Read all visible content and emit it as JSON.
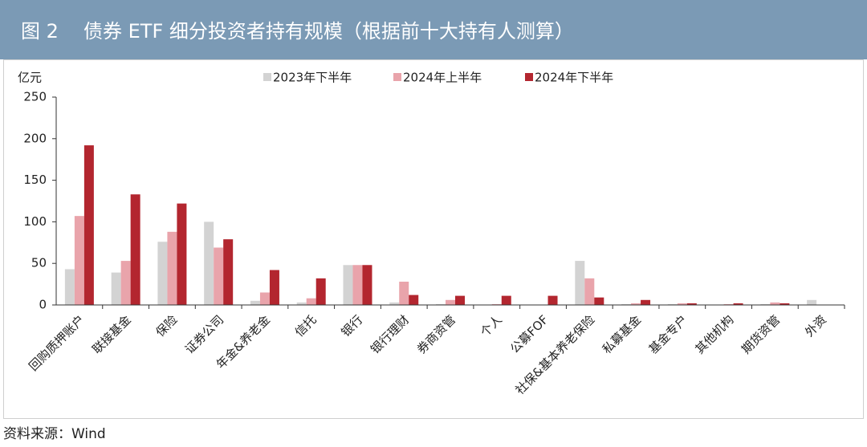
{
  "chart_data": {
    "type": "bar",
    "figure_label": "图 2",
    "title": "债券 ETF 细分投资者持有规模（根据前十大持有人测算）",
    "y_axis_label": "亿元",
    "source": "资料来源：Wind",
    "categories": [
      "回购质押账户",
      "联接基金",
      "保险",
      "证券公司",
      "年金&养老金",
      "信托",
      "银行",
      "银行理财",
      "券商资管",
      "个人",
      "公募FOF",
      "社保&基本养老保险",
      "私募基金",
      "基金专户",
      "其他机构",
      "期货资管",
      "外资"
    ],
    "series": [
      {
        "name": "2023年下半年",
        "color": "#d3d3d3",
        "values": [
          43,
          39,
          76,
          100,
          5,
          3,
          48,
          3,
          1,
          0,
          0,
          53,
          1,
          1,
          0,
          1,
          6
        ]
      },
      {
        "name": "2024年上半年",
        "color": "#e9a4ab",
        "values": [
          107,
          53,
          88,
          69,
          15,
          8,
          48,
          28,
          6,
          1,
          0,
          32,
          2,
          2,
          1,
          3,
          0
        ]
      },
      {
        "name": "2024年下半年",
        "color": "#b3262f",
        "values": [
          192,
          133,
          122,
          79,
          42,
          32,
          48,
          12,
          11,
          11,
          11,
          9,
          6,
          2,
          2,
          2,
          0
        ]
      }
    ],
    "ylim": [
      0,
      250
    ],
    "yticks": [
      0,
      50,
      100,
      150,
      200,
      250
    ]
  }
}
